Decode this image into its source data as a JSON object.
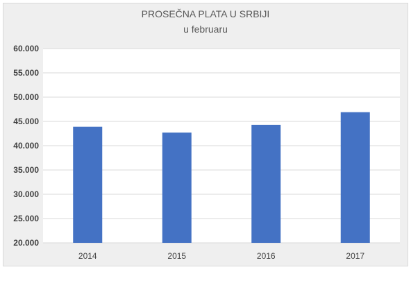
{
  "chart_data": {
    "type": "bar",
    "title": "PROSEČNA PLATA  U SRBIJI",
    "subtitle": "u februaru",
    "categories": [
      "2014",
      "2015",
      "2016",
      "2017"
    ],
    "values": [
      43900,
      42700,
      44300,
      46900
    ],
    "ylim": [
      20000,
      60000
    ],
    "yticks": [
      "20.000",
      "25.000",
      "30.000",
      "35.000",
      "40.000",
      "45.000",
      "50.000",
      "55.000",
      "60.000"
    ],
    "grid": true,
    "bar_color": "#4472c4",
    "plot_background": "#ffffff",
    "chart_background": "#efefef"
  }
}
